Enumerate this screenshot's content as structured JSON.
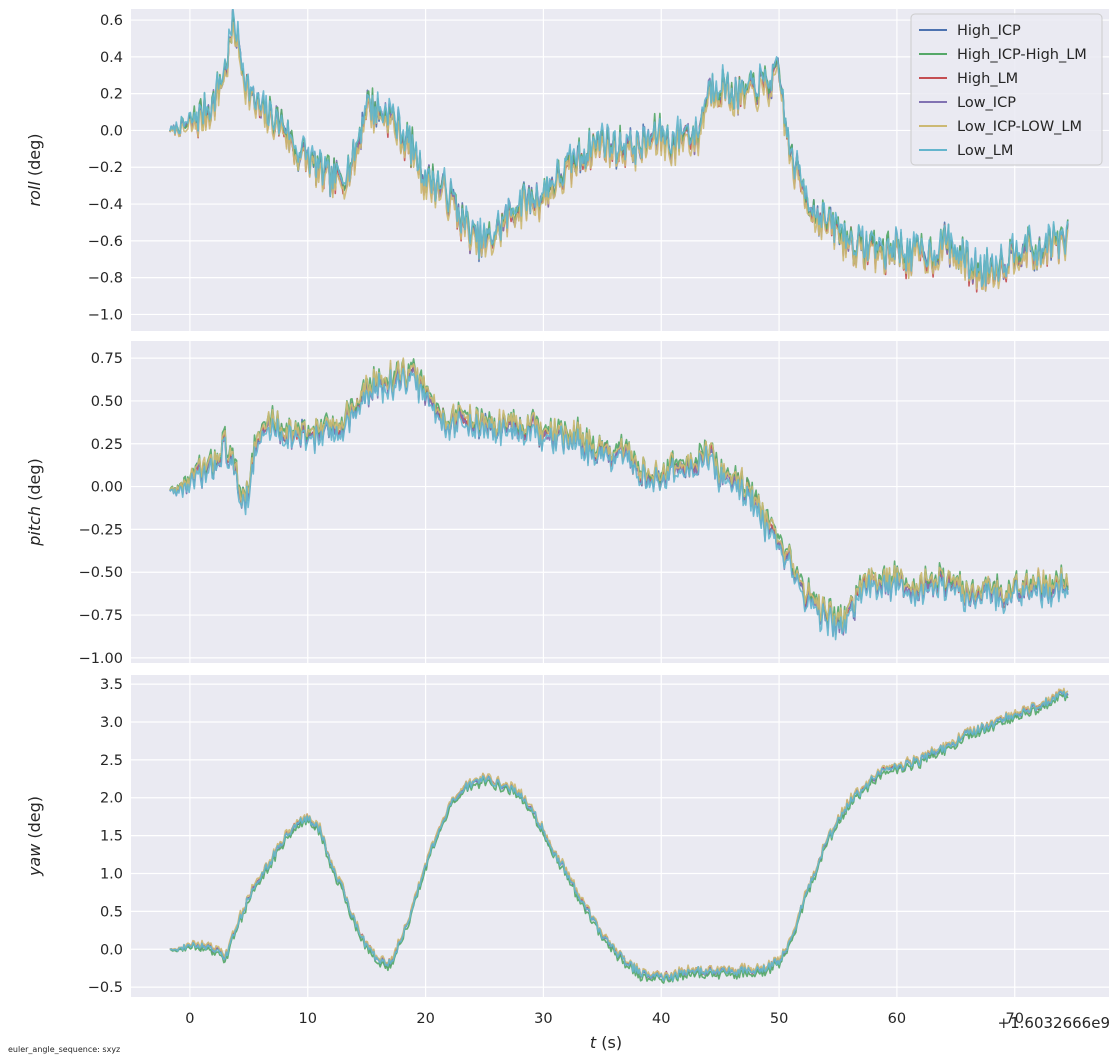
{
  "footer_note": "euler_angle_sequence: sxyz",
  "offset_label": "+1.6032666e9",
  "colors": {
    "panel_bg": "#eaeaf2",
    "grid": "#ffffff",
    "text": "#262626"
  },
  "chart_data": {
    "type": "line",
    "x_label_var": "t",
    "x_label_unit": " (s)",
    "xlim": [
      -5,
      78
    ],
    "xticks": [
      0,
      10,
      20,
      30,
      40,
      50,
      60,
      70
    ],
    "legend_placement": "top-right",
    "grid": true,
    "series": [
      {
        "name": "High_ICP",
        "color": "#4c72b0"
      },
      {
        "name": "High_ICP-High_LM",
        "color": "#55a868"
      },
      {
        "name": "High_LM",
        "color": "#c44e52"
      },
      {
        "name": "Low_ICP",
        "color": "#8172b2"
      },
      {
        "name": "Low_ICP-LOW_LM",
        "color": "#ccb974"
      },
      {
        "name": "Low_LM",
        "color": "#64b5cd"
      }
    ],
    "panels": [
      {
        "var": "roll",
        "unit": " (deg)",
        "ylim": [
          -1.09,
          0.66
        ],
        "yticks": [
          0.6,
          0.4,
          0.2,
          0.0,
          -0.2,
          -0.4,
          -0.6,
          -0.8,
          -1.0
        ],
        "ytick_labels": [
          "0.6",
          "0.4",
          "0.2",
          "0.0",
          "−0.2",
          "−0.4",
          "−0.6",
          "−0.8",
          "−1.0"
        ],
        "x": [
          -1.7,
          0,
          1,
          2,
          3,
          3.7,
          5,
          6,
          7,
          8,
          9,
          10,
          11,
          12,
          13,
          14,
          15,
          16,
          17,
          18,
          19,
          20,
          21,
          22,
          23,
          24,
          25,
          26,
          27,
          28,
          29,
          30,
          31,
          32,
          33,
          34,
          35,
          36,
          37,
          38,
          39,
          40,
          41,
          42,
          43,
          44,
          45,
          46,
          47,
          48,
          49,
          50,
          51,
          52,
          53,
          54,
          55,
          56,
          57,
          58,
          59,
          60,
          61,
          62,
          63,
          64,
          65,
          66,
          67,
          68,
          69,
          70,
          71,
          72,
          73,
          74,
          74.5
        ],
        "values": [
          0.0,
          0.03,
          0.08,
          0.15,
          0.33,
          0.58,
          0.2,
          0.1,
          0.06,
          0.03,
          -0.12,
          -0.15,
          -0.22,
          -0.27,
          -0.25,
          -0.15,
          0.15,
          0.1,
          0.08,
          -0.03,
          -0.12,
          -0.27,
          -0.3,
          -0.35,
          -0.48,
          -0.58,
          -0.62,
          -0.55,
          -0.47,
          -0.4,
          -0.38,
          -0.35,
          -0.28,
          -0.22,
          -0.15,
          -0.1,
          -0.05,
          -0.1,
          -0.08,
          -0.1,
          -0.05,
          -0.02,
          -0.08,
          0.0,
          -0.05,
          0.22,
          0.25,
          0.2,
          0.18,
          0.24,
          0.25,
          0.3,
          -0.15,
          -0.3,
          -0.45,
          -0.5,
          -0.55,
          -0.6,
          -0.65,
          -0.62,
          -0.68,
          -0.63,
          -0.7,
          -0.66,
          -0.68,
          -0.6,
          -0.67,
          -0.72,
          -0.78,
          -0.74,
          -0.72,
          -0.65,
          -0.62,
          -0.7,
          -0.6,
          -0.62,
          -0.6
        ]
      },
      {
        "var": "pitch",
        "unit": " (deg)",
        "ylim": [
          -1.03,
          0.85
        ],
        "yticks": [
          0.75,
          0.5,
          0.25,
          0.0,
          -0.25,
          -0.5,
          -0.75,
          -1.0
        ],
        "ytick_labels": [
          "0.75",
          "0.50",
          "0.25",
          "0.00",
          "−0.25",
          "−0.50",
          "−0.75",
          "−1.00"
        ],
        "x": [
          -1.7,
          -1,
          0,
          1,
          2,
          2.5,
          3,
          4,
          4.5,
          5,
          5.5,
          6,
          7,
          8,
          9,
          10,
          11,
          12,
          13,
          14,
          15,
          16,
          17,
          18,
          19,
          20,
          21,
          22,
          23,
          24,
          25,
          26,
          27,
          28,
          29,
          30,
          31,
          32,
          33,
          34,
          35,
          36,
          37,
          38,
          39,
          40,
          41,
          42,
          43,
          44,
          45,
          46,
          47,
          48,
          49,
          50,
          51,
          52,
          53,
          54,
          55,
          56,
          57,
          58,
          59,
          60,
          61,
          62,
          63,
          64,
          65,
          66,
          67,
          68,
          69,
          70,
          71,
          72,
          73,
          74,
          74.5
        ],
        "values": [
          -0.02,
          -0.02,
          0.03,
          0.08,
          0.12,
          0.2,
          0.25,
          0.05,
          -0.08,
          0.0,
          0.2,
          0.3,
          0.38,
          0.32,
          0.3,
          0.3,
          0.32,
          0.33,
          0.38,
          0.45,
          0.55,
          0.6,
          0.62,
          0.65,
          0.64,
          0.55,
          0.42,
          0.38,
          0.4,
          0.38,
          0.36,
          0.33,
          0.38,
          0.32,
          0.35,
          0.28,
          0.3,
          0.28,
          0.3,
          0.22,
          0.2,
          0.15,
          0.2,
          0.1,
          0.05,
          0.05,
          0.12,
          0.08,
          0.15,
          0.2,
          0.05,
          0.05,
          0.0,
          -0.1,
          -0.25,
          -0.38,
          -0.45,
          -0.6,
          -0.7,
          -0.75,
          -0.8,
          -0.75,
          -0.6,
          -0.55,
          -0.58,
          -0.55,
          -0.58,
          -0.6,
          -0.57,
          -0.55,
          -0.6,
          -0.62,
          -0.58,
          -0.6,
          -0.65,
          -0.6,
          -0.57,
          -0.58,
          -0.6,
          -0.55,
          -0.55
        ]
      },
      {
        "var": "yaw",
        "unit": " (deg)",
        "ylim": [
          -0.63,
          3.62
        ],
        "yticks": [
          3.5,
          3.0,
          2.5,
          2.0,
          1.5,
          1.0,
          0.5,
          0.0,
          -0.5
        ],
        "ytick_labels": [
          "3.5",
          "3.0",
          "2.5",
          "2.0",
          "1.5",
          "1.0",
          "0.5",
          "0.0",
          "−0.5"
        ],
        "x": [
          -1.7,
          -1,
          0,
          1,
          2,
          3,
          4,
          5,
          6,
          7,
          8,
          9,
          10,
          11,
          12,
          13,
          14,
          15,
          16,
          17,
          18,
          19,
          20,
          21,
          22,
          23,
          24,
          25,
          26,
          27,
          28,
          29,
          30,
          31,
          32,
          33,
          34,
          35,
          36,
          37,
          38,
          39,
          40,
          41,
          42,
          43,
          44,
          45,
          46,
          47,
          48,
          49,
          50,
          51,
          52,
          53,
          54,
          55,
          56,
          57,
          58,
          59,
          60,
          61,
          62,
          63,
          64,
          65,
          66,
          67,
          68,
          69,
          70,
          71,
          72,
          73,
          74,
          74.5
        ],
        "values": [
          0.0,
          0.0,
          0.05,
          0.05,
          0.0,
          -0.1,
          0.3,
          0.7,
          0.95,
          1.2,
          1.45,
          1.65,
          1.72,
          1.6,
          1.1,
          0.8,
          0.35,
          0.05,
          -0.15,
          -0.2,
          0.15,
          0.6,
          1.1,
          1.5,
          1.85,
          2.1,
          2.2,
          2.25,
          2.2,
          2.15,
          2.05,
          1.85,
          1.55,
          1.25,
          1.0,
          0.7,
          0.45,
          0.2,
          0.0,
          -0.15,
          -0.3,
          -0.35,
          -0.35,
          -0.35,
          -0.3,
          -0.3,
          -0.28,
          -0.3,
          -0.3,
          -0.28,
          -0.28,
          -0.25,
          -0.15,
          0.1,
          0.6,
          1.0,
          1.4,
          1.7,
          1.95,
          2.1,
          2.25,
          2.35,
          2.4,
          2.45,
          2.5,
          2.6,
          2.65,
          2.75,
          2.85,
          2.9,
          2.95,
          3.05,
          3.1,
          3.15,
          3.2,
          3.3,
          3.35,
          3.4
        ]
      }
    ]
  }
}
